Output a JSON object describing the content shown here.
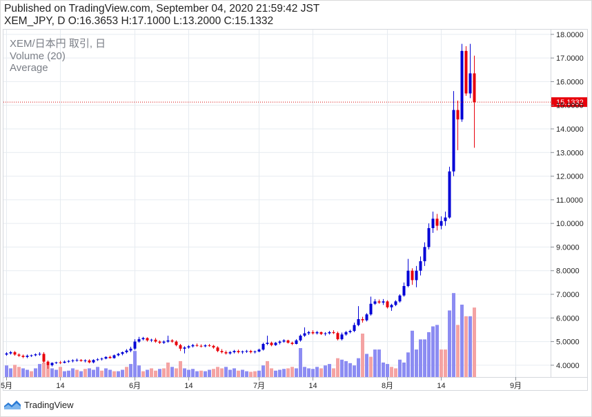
{
  "header": {
    "published_line": "Published on TradingView.com, September 04, 2020 21:59:42 JST",
    "ohlc_line": "XEM_JPY, D O:16.3653 H:17.1000 L:13.2000 C:15.1332"
  },
  "footer": {
    "brand": "TradingView"
  },
  "colors": {
    "up": "#0000d6",
    "down": "#e8000b",
    "volume_up": "#8c8cf2",
    "volume_down": "#f4a3a3",
    "grid": "#e6ebf0",
    "price_line": "#d60000",
    "price_label_bg": "#e8000b"
  },
  "chart_data": {
    "type": "candlestick",
    "symbol_legend": "XEM/日本円 取引, 日",
    "indicator_legend": [
      "Volume (20)",
      "Average"
    ],
    "y_ticks": [
      "4.0000",
      "5.0000",
      "6.0000",
      "7.0000",
      "8.0000",
      "9.0000",
      "10.0000",
      "11.0000",
      "12.0000",
      "13.0000",
      "14.0000",
      "15.0000",
      "16.0000",
      "17.0000",
      "18.0000"
    ],
    "ylim": [
      3.5,
      18.2
    ],
    "x_ticks": [
      {
        "label": "5月",
        "index": 0
      },
      {
        "label": "14",
        "index": 13
      },
      {
        "label": "6月",
        "index": 31
      },
      {
        "label": "14",
        "index": 44
      },
      {
        "label": "7月",
        "index": 61
      },
      {
        "label": "14",
        "index": 74
      },
      {
        "label": "8月",
        "index": 92
      },
      {
        "label": "14",
        "index": 105
      },
      {
        "label": "9月",
        "index": 123
      }
    ],
    "last_price": 15.1332,
    "last_price_label": "15.1332",
    "candles": [
      [
        4.45,
        4.55,
        4.4,
        4.5
      ],
      [
        4.5,
        4.6,
        4.45,
        4.55
      ],
      [
        4.55,
        4.6,
        4.4,
        4.45
      ],
      [
        4.45,
        4.5,
        4.35,
        4.4
      ],
      [
        4.4,
        4.45,
        4.3,
        4.35
      ],
      [
        4.35,
        4.45,
        4.3,
        4.4
      ],
      [
        4.4,
        4.45,
        4.35,
        4.42
      ],
      [
        4.42,
        4.5,
        4.38,
        4.46
      ],
      [
        4.46,
        4.55,
        4.4,
        4.48
      ],
      [
        4.48,
        4.55,
        4.1,
        4.15
      ],
      [
        4.15,
        4.2,
        3.85,
        4.0
      ],
      [
        4.0,
        4.12,
        3.95,
        4.1
      ],
      [
        4.1,
        4.15,
        4.05,
        4.12
      ],
      [
        4.12,
        4.18,
        4.05,
        4.1
      ],
      [
        4.1,
        4.2,
        4.08,
        4.15
      ],
      [
        4.15,
        4.22,
        4.1,
        4.18
      ],
      [
        4.18,
        4.25,
        4.12,
        4.2
      ],
      [
        4.2,
        4.28,
        4.15,
        4.22
      ],
      [
        4.22,
        4.26,
        4.15,
        4.18
      ],
      [
        4.18,
        4.25,
        4.12,
        4.2
      ],
      [
        4.2,
        4.25,
        4.08,
        4.12
      ],
      [
        4.12,
        4.25,
        4.08,
        4.22
      ],
      [
        4.22,
        4.3,
        4.18,
        4.25
      ],
      [
        4.25,
        4.32,
        4.2,
        4.28
      ],
      [
        4.28,
        4.38,
        4.25,
        4.35
      ],
      [
        4.35,
        4.4,
        4.28,
        4.3
      ],
      [
        4.3,
        4.45,
        4.28,
        4.42
      ],
      [
        4.42,
        4.52,
        4.38,
        4.48
      ],
      [
        4.48,
        4.58,
        4.42,
        4.55
      ],
      [
        4.55,
        4.68,
        4.5,
        4.62
      ],
      [
        4.62,
        4.78,
        4.55,
        4.7
      ],
      [
        4.7,
        5.1,
        4.65,
        5.0
      ],
      [
        5.0,
        5.2,
        4.95,
        5.1
      ],
      [
        5.1,
        5.2,
        5.05,
        5.15
      ],
      [
        5.15,
        5.18,
        5.0,
        5.05
      ],
      [
        5.05,
        5.12,
        4.98,
        5.08
      ],
      [
        5.08,
        5.15,
        4.95,
        5.0
      ],
      [
        5.0,
        5.05,
        4.9,
        4.95
      ],
      [
        4.95,
        5.05,
        4.9,
        5.0
      ],
      [
        5.0,
        5.25,
        4.95,
        5.05
      ],
      [
        5.05,
        5.1,
        4.95,
        5.0
      ],
      [
        5.0,
        5.05,
        4.8,
        4.85
      ],
      [
        4.85,
        4.9,
        4.6,
        4.7
      ],
      [
        4.7,
        4.8,
        4.5,
        4.75
      ],
      [
        4.75,
        4.85,
        4.7,
        4.8
      ],
      [
        4.8,
        4.9,
        4.75,
        4.85
      ],
      [
        4.85,
        4.92,
        4.78,
        4.82
      ],
      [
        4.82,
        4.88,
        4.75,
        4.8
      ],
      [
        4.8,
        4.88,
        4.76,
        4.84
      ],
      [
        4.84,
        4.9,
        4.78,
        4.82
      ],
      [
        4.82,
        4.86,
        4.7,
        4.75
      ],
      [
        4.75,
        4.8,
        4.55,
        4.6
      ],
      [
        4.6,
        4.68,
        4.5,
        4.55
      ],
      [
        4.55,
        4.62,
        4.45,
        4.5
      ],
      [
        4.5,
        4.6,
        4.45,
        4.55
      ],
      [
        4.55,
        4.65,
        4.5,
        4.6
      ],
      [
        4.6,
        4.66,
        4.5,
        4.55
      ],
      [
        4.55,
        4.62,
        4.48,
        4.58
      ],
      [
        4.58,
        4.65,
        4.52,
        4.6
      ],
      [
        4.6,
        4.65,
        4.5,
        4.55
      ],
      [
        4.55,
        4.62,
        4.5,
        4.58
      ],
      [
        4.58,
        4.7,
        4.55,
        4.66
      ],
      [
        4.66,
        4.95,
        4.62,
        4.9
      ],
      [
        4.9,
        5.25,
        4.85,
        4.95
      ],
      [
        4.95,
        5.0,
        4.8,
        4.85
      ],
      [
        4.85,
        4.98,
        4.82,
        4.95
      ],
      [
        4.95,
        5.05,
        4.88,
        5.0
      ],
      [
        5.0,
        5.1,
        4.95,
        5.05
      ],
      [
        5.05,
        5.08,
        4.92,
        4.95
      ],
      [
        4.95,
        5.0,
        4.85,
        4.9
      ],
      [
        4.9,
        5.1,
        4.88,
        5.05
      ],
      [
        5.05,
        5.3,
        5.0,
        5.25
      ],
      [
        5.25,
        5.6,
        5.2,
        5.35
      ],
      [
        5.35,
        5.45,
        5.28,
        5.4
      ],
      [
        5.4,
        5.48,
        5.3,
        5.35
      ],
      [
        5.35,
        5.45,
        5.3,
        5.4
      ],
      [
        5.4,
        5.42,
        5.28,
        5.32
      ],
      [
        5.32,
        5.4,
        5.25,
        5.35
      ],
      [
        5.35,
        5.45,
        5.3,
        5.4
      ],
      [
        5.4,
        5.48,
        5.32,
        5.36
      ],
      [
        5.36,
        5.42,
        5.05,
        5.1
      ],
      [
        5.1,
        5.38,
        5.05,
        5.3
      ],
      [
        5.3,
        5.45,
        5.25,
        5.4
      ],
      [
        5.4,
        5.5,
        5.35,
        5.45
      ],
      [
        5.45,
        5.8,
        5.4,
        5.7
      ],
      [
        5.7,
        6.5,
        5.65,
        5.95
      ],
      [
        5.95,
        6.05,
        5.8,
        5.9
      ],
      [
        5.9,
        6.2,
        5.85,
        6.15
      ],
      [
        6.15,
        6.9,
        6.1,
        6.6
      ],
      [
        6.6,
        6.8,
        6.55,
        6.7
      ],
      [
        6.7,
        6.78,
        6.6,
        6.65
      ],
      [
        6.65,
        6.8,
        6.55,
        6.7
      ],
      [
        6.7,
        6.75,
        6.4,
        6.45
      ],
      [
        6.45,
        6.6,
        6.3,
        6.55
      ],
      [
        6.55,
        6.75,
        6.5,
        6.7
      ],
      [
        6.7,
        7.0,
        6.65,
        6.95
      ],
      [
        6.95,
        7.5,
        6.9,
        7.35
      ],
      [
        7.35,
        8.5,
        7.3,
        8.0
      ],
      [
        8.0,
        8.1,
        7.4,
        7.6
      ],
      [
        7.6,
        8.2,
        7.3,
        8.0
      ],
      [
        8.0,
        8.6,
        7.8,
        8.4
      ],
      [
        8.4,
        9.2,
        8.2,
        9.0
      ],
      [
        9.0,
        10.0,
        8.9,
        9.8
      ],
      [
        9.8,
        10.5,
        9.6,
        10.2
      ],
      [
        10.2,
        10.4,
        9.7,
        9.9
      ],
      [
        9.9,
        10.3,
        9.75,
        10.1
      ],
      [
        10.1,
        10.5,
        9.9,
        10.25
      ],
      [
        10.25,
        12.4,
        10.2,
        12.2
      ],
      [
        12.2,
        15.6,
        12.0,
        14.8
      ],
      [
        14.8,
        15.2,
        13.1,
        14.4
      ],
      [
        14.4,
        17.6,
        14.3,
        17.3
      ],
      [
        17.3,
        17.5,
        15.4,
        15.5
      ],
      [
        15.5,
        17.6,
        15.3,
        16.35
      ],
      [
        16.35,
        17.1,
        13.2,
        15.13
      ]
    ],
    "volumes": [
      [
        0.4,
        0
      ],
      [
        0.3,
        0
      ],
      [
        0.42,
        1
      ],
      [
        0.35,
        1
      ],
      [
        0.3,
        0
      ],
      [
        0.25,
        0
      ],
      [
        0.2,
        1
      ],
      [
        0.3,
        0
      ],
      [
        0.45,
        0
      ],
      [
        0.5,
        1
      ],
      [
        0.4,
        1
      ],
      [
        0.3,
        0
      ],
      [
        0.25,
        0
      ],
      [
        0.35,
        1
      ],
      [
        0.2,
        0
      ],
      [
        0.22,
        0
      ],
      [
        0.3,
        0
      ],
      [
        0.25,
        1
      ],
      [
        0.2,
        0
      ],
      [
        0.28,
        1
      ],
      [
        0.3,
        0
      ],
      [
        0.25,
        0
      ],
      [
        0.35,
        0
      ],
      [
        0.22,
        1
      ],
      [
        0.3,
        0
      ],
      [
        0.25,
        0
      ],
      [
        0.2,
        1
      ],
      [
        0.2,
        0
      ],
      [
        0.25,
        0
      ],
      [
        0.35,
        1
      ],
      [
        0.45,
        0
      ],
      [
        0.9,
        0
      ],
      [
        0.4,
        0
      ],
      [
        0.2,
        1
      ],
      [
        0.25,
        0
      ],
      [
        0.3,
        1
      ],
      [
        0.22,
        1
      ],
      [
        0.28,
        0
      ],
      [
        0.3,
        1
      ],
      [
        0.5,
        1
      ],
      [
        0.35,
        0
      ],
      [
        0.3,
        1
      ],
      [
        0.55,
        1
      ],
      [
        0.3,
        0
      ],
      [
        0.25,
        0
      ],
      [
        0.28,
        0
      ],
      [
        0.2,
        0
      ],
      [
        0.22,
        1
      ],
      [
        0.2,
        0
      ],
      [
        0.25,
        0
      ],
      [
        0.28,
        1
      ],
      [
        0.35,
        1
      ],
      [
        0.3,
        1
      ],
      [
        0.35,
        0
      ],
      [
        0.25,
        0
      ],
      [
        0.3,
        0
      ],
      [
        0.22,
        1
      ],
      [
        0.25,
        0
      ],
      [
        0.2,
        0
      ],
      [
        0.18,
        1
      ],
      [
        0.2,
        1
      ],
      [
        0.22,
        0
      ],
      [
        0.4,
        0
      ],
      [
        0.55,
        1
      ],
      [
        0.3,
        1
      ],
      [
        0.22,
        0
      ],
      [
        0.25,
        0
      ],
      [
        0.28,
        0
      ],
      [
        0.3,
        1
      ],
      [
        0.35,
        1
      ],
      [
        0.3,
        0
      ],
      [
        1.0,
        0
      ],
      [
        0.35,
        0
      ],
      [
        0.3,
        0
      ],
      [
        0.28,
        0
      ],
      [
        0.35,
        0
      ],
      [
        0.3,
        1
      ],
      [
        0.4,
        0
      ],
      [
        0.45,
        0
      ],
      [
        0.3,
        1
      ],
      [
        0.65,
        1
      ],
      [
        0.6,
        0
      ],
      [
        0.55,
        0
      ],
      [
        0.48,
        0
      ],
      [
        0.4,
        0
      ],
      [
        0.65,
        0
      ],
      [
        1.5,
        1
      ],
      [
        0.8,
        0
      ],
      [
        0.7,
        1
      ],
      [
        0.95,
        0
      ],
      [
        0.95,
        0
      ],
      [
        0.5,
        0
      ],
      [
        0.45,
        0
      ],
      [
        0.35,
        1
      ],
      [
        0.3,
        1
      ],
      [
        0.6,
        0
      ],
      [
        0.5,
        0
      ],
      [
        0.85,
        0
      ],
      [
        1.6,
        0
      ],
      [
        0.95,
        0
      ],
      [
        1.3,
        0
      ],
      [
        1.3,
        0
      ],
      [
        1.55,
        0
      ],
      [
        1.75,
        0
      ],
      [
        1.8,
        0
      ],
      [
        0.95,
        1
      ],
      [
        0.95,
        1
      ],
      [
        2.3,
        0
      ],
      [
        2.9,
        0
      ],
      [
        1.8,
        1
      ],
      [
        2.5,
        0
      ],
      [
        2.1,
        1
      ],
      [
        2.1,
        0
      ],
      [
        2.4,
        1
      ]
    ]
  }
}
